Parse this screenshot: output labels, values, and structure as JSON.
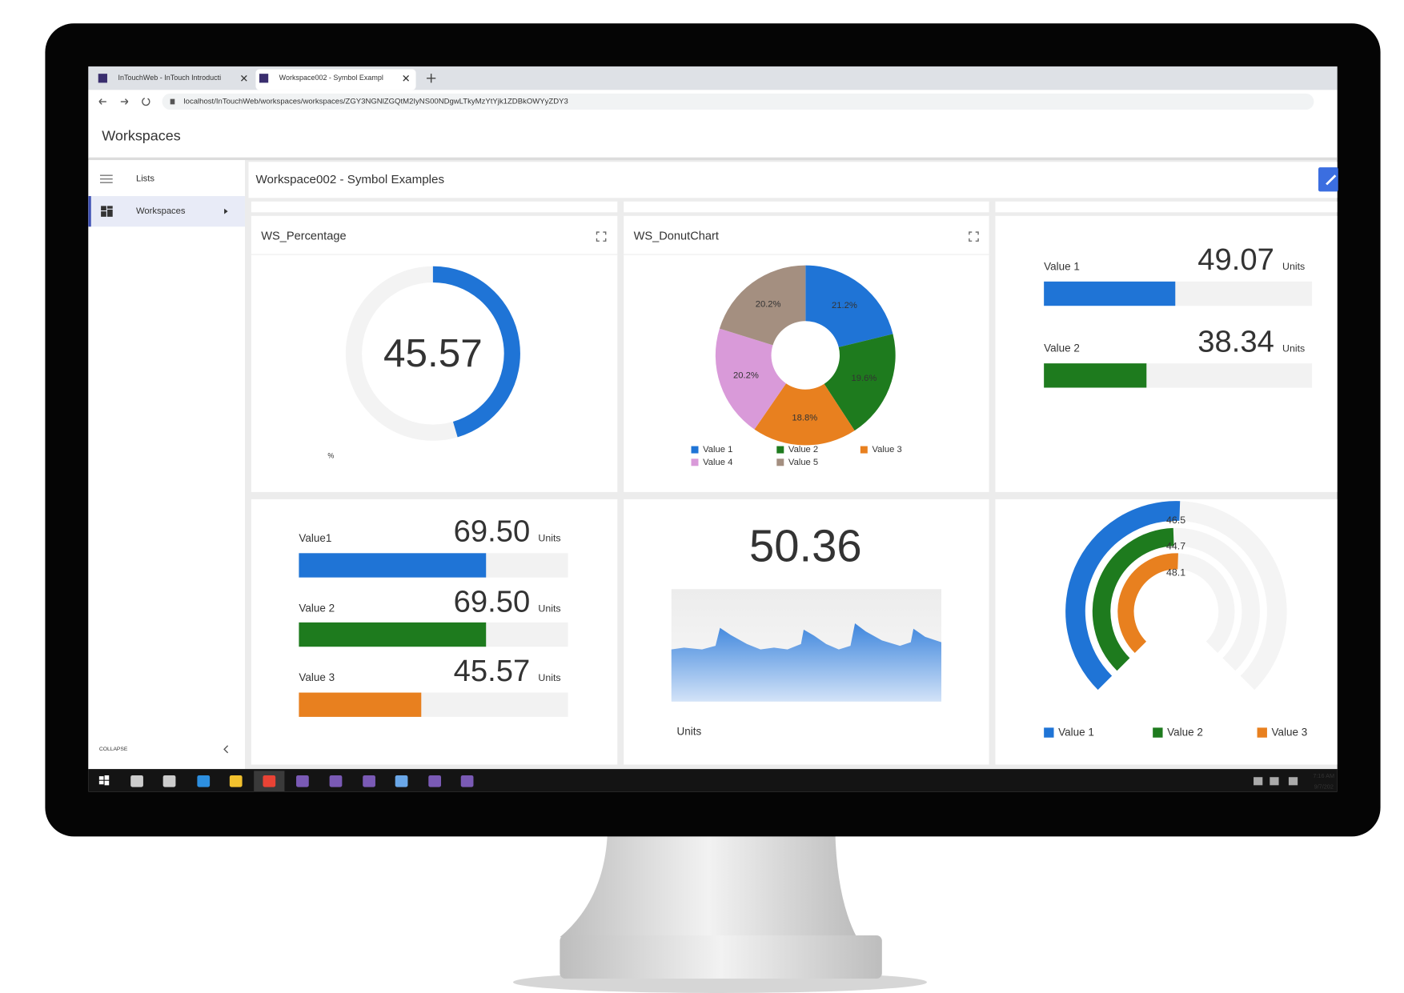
{
  "browser": {
    "tabs": [
      "InTouchWeb - InTouch Introducti",
      "Workspace002 - Symbol Exampl"
    ],
    "url": "localhost/InTouchWeb/workspaces/workspaces/ZGY3NGNlZGQtM2IyNS00NDgwLTkyMzYtYjk1ZDBkOWYyZDY3"
  },
  "app": {
    "title": "Workspaces"
  },
  "sidebar": {
    "items": [
      "Lists",
      "Workspaces"
    ],
    "collapse": "COLLAPSE"
  },
  "workspace": {
    "title": "Workspace002 - Symbol Examples"
  },
  "widgets": {
    "percentage": {
      "title": "WS_Percentage",
      "value": "45.57",
      "unit": "%"
    },
    "donut": {
      "title": "WS_DonutChart",
      "type": "pie",
      "categories": [
        "Value 1",
        "Value 2",
        "Value 3",
        "Value 4",
        "Value 5"
      ],
      "values": [
        21.2,
        19.6,
        18.8,
        20.2,
        20.2
      ],
      "value_labels": [
        "21.2%",
        "19.6%",
        "18.8%",
        "20.2%",
        "20.2%"
      ],
      "colors": [
        "#1f74d6",
        "#1e7b1e",
        "#e8801f",
        "#d99ad9",
        "#a48f80"
      ]
    },
    "bars_top": {
      "items": [
        {
          "name": "Value 1",
          "value": "49.07",
          "unit": "Units"
        },
        {
          "name": "Value 2",
          "value": "38.34",
          "unit": "Units"
        }
      ]
    },
    "bars_bottom": {
      "items": [
        {
          "name": "Value1",
          "value": "69.50",
          "unit": "Units"
        },
        {
          "name": "Value 2",
          "value": "69.50",
          "unit": "Units"
        },
        {
          "name": "Value 3",
          "value": "45.57",
          "unit": "Units"
        }
      ]
    },
    "trend": {
      "value": "50.36",
      "unit": "Units"
    },
    "radial": {
      "labels": [
        "46.5",
        "44.7",
        "48.1"
      ],
      "legend": [
        "Value 1",
        "Value 2",
        "Value 3"
      ]
    }
  },
  "taskbar": {
    "time": "7:16 AM",
    "date": "9/7/202"
  }
}
